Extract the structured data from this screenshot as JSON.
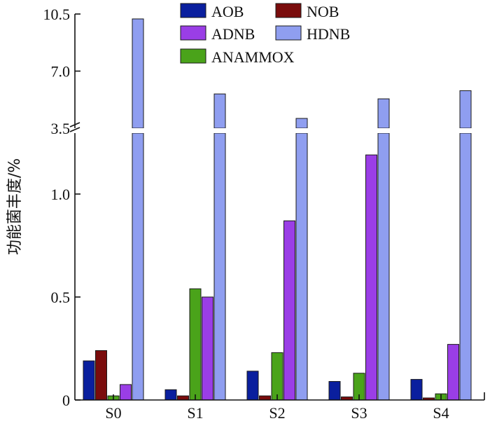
{
  "chart_data": {
    "type": "bar",
    "categories": [
      "S0",
      "S1",
      "S2",
      "S3",
      "S4"
    ],
    "series": [
      {
        "name": "AOB",
        "color": "#0a1f9e",
        "values": [
          0.19,
          0.05,
          0.14,
          0.09,
          0.1
        ]
      },
      {
        "name": "NOB",
        "color": "#7a0c0c",
        "values": [
          0.24,
          0.02,
          0.02,
          0.015,
          0.01
        ]
      },
      {
        "name": "ANAMMOX",
        "color": "#4aa31a",
        "values": [
          0.02,
          0.54,
          0.23,
          0.13,
          0.03
        ]
      },
      {
        "name": "ADNB",
        "color": "#9a3ee6",
        "values": [
          0.075,
          0.5,
          0.87,
          1.19,
          0.27
        ]
      },
      {
        "name": "HDNB",
        "color": "#8f9ef0",
        "values": [
          10.2,
          5.6,
          4.1,
          5.3,
          5.8
        ]
      }
    ],
    "ylabel": "功能菌丰度/%",
    "y_ticks_lower": [
      "0",
      "0.5",
      "1.0"
    ],
    "y_ticks_upper": [
      "3.5",
      "7.0",
      "10.5"
    ],
    "ylim_lower": [
      0,
      1.3
    ],
    "ylim_upper": [
      3.5,
      10.5
    ],
    "broken_axis": true,
    "legend": {
      "placement": "top-center",
      "columns": [
        [
          "AOB",
          "ADNB",
          "ANAMMOX"
        ],
        [
          "NOB",
          "HDNB"
        ]
      ]
    },
    "grid": false
  }
}
